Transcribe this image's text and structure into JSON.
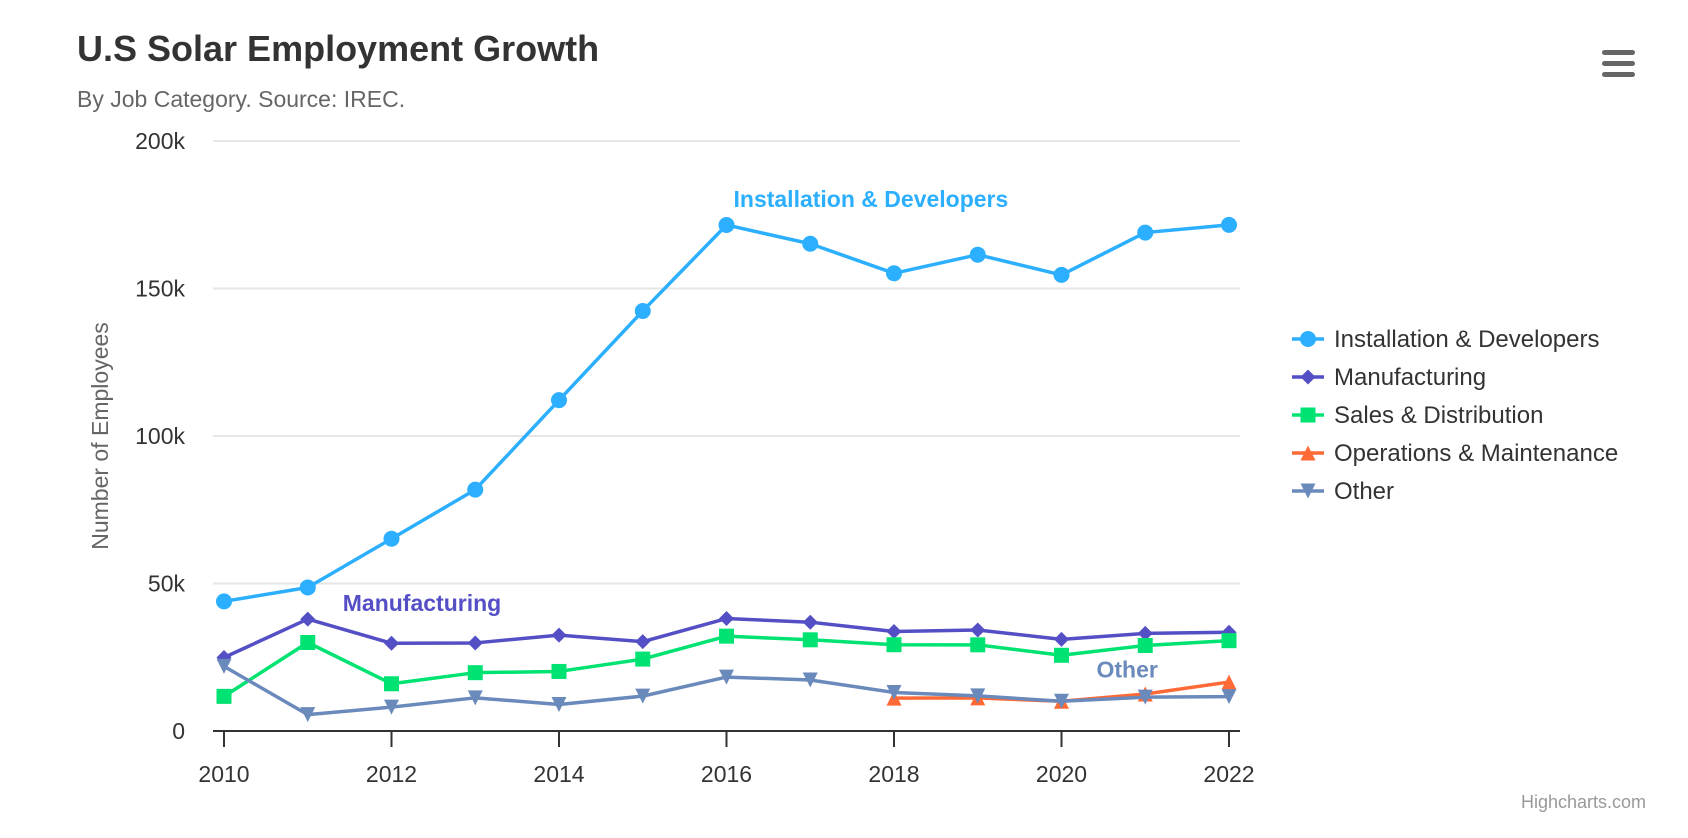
{
  "header": {
    "title": "U.S Solar Employment Growth",
    "subtitle": "By Job Category. Source: IREC."
  },
  "menu": {
    "icon": "hamburger-menu-icon"
  },
  "credits": "Highcharts.com",
  "chart_data": {
    "type": "line",
    "title": "U.S Solar Employment Growth",
    "subtitle": "By Job Category. Source: IREC.",
    "xlabel": "",
    "ylabel": "Number of Employees",
    "x": [
      2010,
      2011,
      2012,
      2013,
      2014,
      2015,
      2016,
      2017,
      2018,
      2019,
      2020,
      2021,
      2022
    ],
    "xticks": [
      "2010",
      "2012",
      "2014",
      "2016",
      "2018",
      "2020",
      "2022"
    ],
    "xlim": [
      2010,
      2022
    ],
    "ylim": [
      0,
      200000
    ],
    "yticks": [
      {
        "value": 0,
        "label": "0"
      },
      {
        "value": 50000,
        "label": "50k"
      },
      {
        "value": 100000,
        "label": "100k"
      },
      {
        "value": 150000,
        "label": "150k"
      },
      {
        "value": 200000,
        "label": "200k"
      }
    ],
    "grid": true,
    "legend": "right",
    "series": [
      {
        "name": "Installation & Developers",
        "color": "#2caffe",
        "marker": "circle",
        "values": [
          43934,
          48656,
          65165,
          81827,
          112143,
          142383,
          171533,
          165174,
          155157,
          161454,
          154610,
          168960,
          171558
        ]
      },
      {
        "name": "Manufacturing",
        "color": "#544fc5",
        "marker": "diamond",
        "values": [
          24916,
          37941,
          29742,
          29851,
          32490,
          30282,
          38121,
          36885,
          33726,
          34243,
          31050,
          33099,
          33473
        ]
      },
      {
        "name": "Sales & Distribution",
        "color": "#00e272",
        "marker": "square",
        "values": [
          11744,
          30000,
          16005,
          19771,
          20185,
          24377,
          32147,
          30912,
          29243,
          29213,
          25663,
          28978,
          30618
        ]
      },
      {
        "name": "Operations & Maintenance",
        "color": "#fe6a35",
        "marker": "triangle",
        "values": [
          null,
          null,
          null,
          null,
          null,
          null,
          null,
          null,
          11164,
          11218,
          10077,
          12530,
          16585
        ]
      },
      {
        "name": "Other",
        "color": "#6b8abc",
        "marker": "triangle-down",
        "values": [
          21908,
          5548,
          8105,
          11248,
          8989,
          11816,
          18274,
          17300,
          13053,
          11906,
          10073,
          11471,
          11648
        ]
      }
    ],
    "annotations": [
      {
        "text": "Installation & Developers",
        "series": 0,
        "x": 2016,
        "color": "#2caffe"
      },
      {
        "text": "Manufacturing",
        "series": 1,
        "x": 2011,
        "color": "#544fc5"
      },
      {
        "text": "Other",
        "series": 4,
        "x": 2020,
        "color": "#6b8abc"
      }
    ]
  }
}
